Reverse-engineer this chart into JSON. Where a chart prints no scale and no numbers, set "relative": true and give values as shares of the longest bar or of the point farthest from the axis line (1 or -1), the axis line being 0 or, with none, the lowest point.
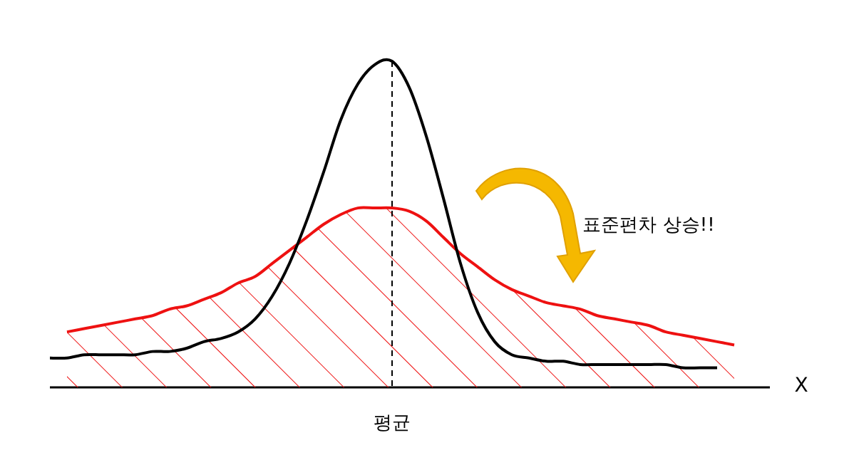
{
  "chart_data": {
    "type": "line",
    "relative": true,
    "categories": [
      null,
      null,
      null,
      null,
      null,
      null,
      null,
      null,
      null,
      null,
      null,
      null,
      null,
      null,
      null,
      null,
      null,
      null,
      null,
      null,
      null,
      null,
      null,
      null,
      null,
      null,
      null,
      null,
      null,
      null,
      null,
      null,
      null,
      null,
      null,
      null,
      null,
      null,
      null,
      null,
      null
    ],
    "xlabel": "X",
    "series": [
      {
        "color": "#000000",
        "values": [
          0.09,
          0.09,
          0.1,
          0.1,
          0.1,
          0.1,
          0.11,
          0.11,
          0.12,
          0.14,
          0.15,
          0.17,
          0.21,
          0.28,
          0.38,
          0.51,
          0.66,
          0.82,
          0.93,
          0.99,
          1,
          0.92,
          0.77,
          0.58,
          0.38,
          0.23,
          0.14,
          0.1,
          0.09,
          0.08,
          0.08,
          0.07,
          0.07,
          0.07,
          0.07,
          0.07,
          0.07,
          0.06,
          0.06,
          0.06,
          null
        ]
      },
      {
        "type": "area",
        "color": "#ee1111",
        "values": [
          null,
          0.17,
          0.18,
          0.19,
          0.2,
          0.21,
          0.22,
          0.24,
          0.25,
          0.27,
          0.29,
          0.32,
          0.34,
          0.38,
          0.42,
          0.46,
          0.5,
          0.53,
          0.55,
          0.55,
          0.55,
          0.54,
          0.51,
          0.46,
          0.41,
          0.37,
          0.33,
          0.3,
          0.28,
          0.26,
          0.25,
          0.24,
          0.22,
          0.21,
          0.2,
          0.19,
          0.17,
          0.16,
          0.15,
          0.14,
          0.13
        ]
      }
    ],
    "ref_lines": [
      {
        "axis": "x",
        "label": "평균",
        "line_style": "dashed",
        "color": "#000000"
      }
    ],
    "annotations": [
      "표준편차 상승!!"
    ]
  }
}
